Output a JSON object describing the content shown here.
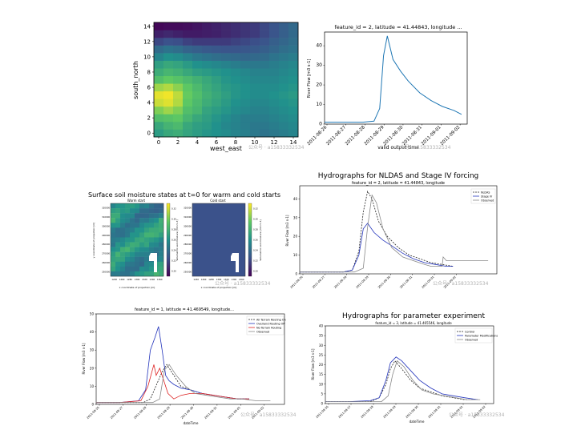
{
  "chart_data": [
    {
      "id": "heatmap",
      "type": "heatmap",
      "title": "",
      "xlabel": "west_east",
      "ylabel": "south_north",
      "x_ticks": [
        "0",
        "2",
        "4",
        "6",
        "8",
        "10",
        "12",
        "14"
      ],
      "y_ticks": [
        "0",
        "2",
        "4",
        "6",
        "8",
        "10",
        "12",
        "14"
      ],
      "colormap": "viridis",
      "values": [
        [
          0.55,
          0.6,
          0.62,
          0.58,
          0.55,
          0.52,
          0.5,
          0.48,
          0.45,
          0.43,
          0.4,
          0.38,
          0.4,
          0.42,
          0.45
        ],
        [
          0.6,
          0.65,
          0.68,
          0.6,
          0.56,
          0.54,
          0.5,
          0.46,
          0.44,
          0.42,
          0.4,
          0.4,
          0.42,
          0.44,
          0.46
        ],
        [
          0.7,
          0.72,
          0.74,
          0.66,
          0.6,
          0.56,
          0.52,
          0.48,
          0.45,
          0.42,
          0.42,
          0.42,
          0.44,
          0.46,
          0.48
        ],
        [
          0.8,
          0.85,
          0.8,
          0.7,
          0.66,
          0.58,
          0.55,
          0.52,
          0.48,
          0.46,
          0.44,
          0.44,
          0.46,
          0.48,
          0.5
        ],
        [
          0.92,
          0.95,
          0.88,
          0.74,
          0.68,
          0.62,
          0.58,
          0.54,
          0.5,
          0.48,
          0.46,
          0.46,
          0.48,
          0.5,
          0.52
        ],
        [
          0.96,
          0.98,
          0.9,
          0.76,
          0.7,
          0.64,
          0.6,
          0.56,
          0.52,
          0.5,
          0.48,
          0.48,
          0.5,
          0.52,
          0.54
        ],
        [
          0.85,
          0.88,
          0.82,
          0.74,
          0.68,
          0.62,
          0.58,
          0.54,
          0.52,
          0.5,
          0.48,
          0.48,
          0.48,
          0.5,
          0.52
        ],
        [
          0.7,
          0.75,
          0.72,
          0.68,
          0.64,
          0.6,
          0.56,
          0.52,
          0.5,
          0.48,
          0.46,
          0.46,
          0.46,
          0.48,
          0.5
        ],
        [
          0.62,
          0.66,
          0.64,
          0.6,
          0.56,
          0.54,
          0.52,
          0.5,
          0.48,
          0.46,
          0.44,
          0.44,
          0.44,
          0.46,
          0.48
        ],
        [
          0.56,
          0.6,
          0.58,
          0.54,
          0.5,
          0.48,
          0.46,
          0.44,
          0.42,
          0.4,
          0.4,
          0.4,
          0.42,
          0.44,
          0.46
        ],
        [
          0.45,
          0.5,
          0.48,
          0.44,
          0.4,
          0.38,
          0.36,
          0.35,
          0.34,
          0.33,
          0.34,
          0.35,
          0.38,
          0.4,
          0.42
        ],
        [
          0.35,
          0.38,
          0.36,
          0.32,
          0.3,
          0.28,
          0.27,
          0.26,
          0.26,
          0.27,
          0.28,
          0.3,
          0.33,
          0.36,
          0.38
        ],
        [
          0.22,
          0.25,
          0.24,
          0.2,
          0.18,
          0.18,
          0.18,
          0.18,
          0.2,
          0.22,
          0.24,
          0.26,
          0.3,
          0.33,
          0.36
        ],
        [
          0.1,
          0.12,
          0.1,
          0.08,
          0.08,
          0.09,
          0.1,
          0.12,
          0.14,
          0.16,
          0.18,
          0.22,
          0.26,
          0.3,
          0.34
        ],
        [
          0.02,
          0.03,
          0.03,
          0.04,
          0.06,
          0.08,
          0.1,
          0.12,
          0.14,
          0.16,
          0.18,
          0.22,
          0.26,
          0.3,
          0.34
        ]
      ]
    },
    {
      "id": "riverflow",
      "type": "line",
      "title": "feature_id = 2, latitude = 41.44843, longitude ...",
      "xlabel": "valid output time",
      "ylabel": "River Flow [m3 s-1]",
      "x_ticks": [
        "2011-08-26",
        "2011-08-27",
        "2011-08-28",
        "2011-08-29",
        "2011-08-30",
        "2011-08-31",
        "2011-09-01",
        "2011-09-02"
      ],
      "y_ticks": [
        "0",
        "10",
        "20",
        "30",
        "40"
      ],
      "xlim": [
        0,
        7.5
      ],
      "ylim": [
        0,
        47
      ],
      "series": [
        {
          "color": "#1f77b4",
          "x": [
            0,
            1,
            2,
            2.6,
            2.9,
            3.1,
            3.3,
            3.6,
            4,
            4.4,
            5,
            5.6,
            6.2,
            6.8,
            7.2
          ],
          "y": [
            1,
            1,
            1,
            1.5,
            8,
            35,
            45,
            33,
            27,
            22,
            16,
            12,
            9,
            7,
            5
          ]
        }
      ]
    },
    {
      "id": "soil",
      "type": "heatmap",
      "title": "Surface soil moisture states at t=0 for warm and cold starts",
      "panels": [
        {
          "subtitle": "Warm start",
          "ylabel": "y coordinate of projection [m]",
          "xlabel": "x coordinate of projection [m]",
          "colorbar_label": "Volumetric soil moisture [m3 m-3]"
        },
        {
          "subtitle": "Cold start",
          "ylabel": "",
          "xlabel": "x coordinate of projection [m]",
          "colorbar_label": "Volumetric soil moisture [m3 m-3]"
        }
      ],
      "y_ticks": [
        "250000",
        "260000",
        "270000",
        "280000",
        "290000",
        "300000",
        "310000",
        "320000"
      ],
      "x_ticks": [
        "1240",
        "1260",
        "1280",
        "1300",
        "1320",
        "1340",
        "1360"
      ],
      "colorbar_ticks": [
        "0.20",
        "0.22",
        "0.24",
        "0.26",
        "0.28",
        "0.30",
        "0.32"
      ]
    },
    {
      "id": "nldas",
      "type": "line",
      "title": "Hydrographs for NLDAS and Stage IV forcing",
      "subtitle": "feature_id = 2, latitude = 41.44843, longitude",
      "xlabel": "",
      "ylabel": "River Flow [m3 s-1]",
      "x_ticks": [
        "2011-08-26",
        "2011-08-27",
        "2011-08-28",
        "2011-08-29",
        "2011-08-30",
        "2011-08-31",
        "2011-09-01",
        "2011-09-02"
      ],
      "y_ticks": [
        "0",
        "10",
        "20",
        "30",
        "40"
      ],
      "legend": "top-right",
      "legend_entries": [
        "NLDAS",
        "Stage IV",
        "Observed"
      ],
      "xlim": [
        0,
        9
      ],
      "ylim": [
        0,
        47
      ],
      "series": [
        {
          "name": "NLDAS",
          "color": "#222222",
          "dash": true,
          "x": [
            0,
            1,
            2,
            2.4,
            2.7,
            2.9,
            3.1,
            3.3,
            3.6,
            4,
            4.5,
            5,
            5.5,
            6,
            6.5,
            7
          ],
          "y": [
            1,
            1,
            1,
            2,
            12,
            33,
            44,
            40,
            28,
            20,
            14,
            10,
            8,
            6,
            5,
            4
          ]
        },
        {
          "name": "Stage IV",
          "color": "#2233bb",
          "dash": false,
          "x": [
            0,
            1,
            2,
            2.4,
            2.7,
            2.9,
            3.1,
            3.4,
            3.8,
            4.2,
            4.7,
            5.2,
            5.7,
            6.2,
            6.7,
            7
          ],
          "y": [
            1,
            1,
            1,
            2,
            10,
            24,
            27,
            22,
            18,
            15,
            11,
            8,
            6,
            5,
            4,
            4
          ]
        },
        {
          "name": "Observed",
          "color": "#888888",
          "dash": false,
          "x": [
            0,
            1,
            2,
            2.5,
            2.9,
            3.1,
            3.3,
            3.5,
            3.8,
            4.2,
            4.7,
            5.2,
            5.7,
            6,
            6.5,
            6.55,
            6.7,
            7.5,
            8,
            8.6
          ],
          "y": [
            1,
            1,
            1,
            1,
            3,
            25,
            42,
            38,
            24,
            14,
            9,
            7,
            5,
            4,
            4,
            9,
            7,
            7,
            7,
            7
          ]
        }
      ]
    },
    {
      "id": "terrain",
      "type": "line",
      "title": "feature_id = 1, latitude = 41.469549, longitude...",
      "xlabel": "dateTime",
      "ylabel": "River Flow [m3 s-1]",
      "x_ticks": [
        "2011-08-26",
        "2011-08-27",
        "2011-08-28",
        "2011-08-29",
        "2011-08-30",
        "2011-08-31",
        "2011-09-01",
        "2011-09-02"
      ],
      "y_ticks": [
        "0",
        "10",
        "20",
        "30",
        "40",
        "50"
      ],
      "legend": "top-right",
      "legend_entries": [
        "All Terrain Routing On",
        "Overland Routing Off",
        "No Terrain Routing",
        "Observed"
      ],
      "xlim": [
        0,
        8
      ],
      "ylim": [
        0,
        50
      ],
      "series": [
        {
          "name": "All Terrain Routing On",
          "color": "#222222",
          "dash": true,
          "x": [
            0,
            1,
            2,
            2.3,
            2.6,
            2.8,
            3,
            3.3,
            3.6,
            4,
            4.5,
            5,
            5.5,
            6,
            6.5
          ],
          "y": [
            1,
            1,
            1,
            3,
            12,
            18,
            22,
            16,
            10,
            8,
            6,
            5,
            4,
            3,
            3
          ]
        },
        {
          "name": "Overland Routing Off",
          "color": "#2233bb",
          "dash": false,
          "x": [
            0,
            1,
            1.8,
            2.1,
            2.3,
            2.5,
            2.65,
            2.8,
            2.95,
            3.1,
            3.3,
            3.6,
            4,
            4.5,
            5,
            5.5,
            6,
            6.5
          ],
          "y": [
            1,
            1,
            2,
            8,
            30,
            37,
            43,
            30,
            16,
            13,
            11,
            9,
            8,
            6,
            5,
            4,
            3,
            3
          ]
        },
        {
          "name": "No Terrain Routing",
          "color": "#dd2222",
          "dash": false,
          "x": [
            0,
            1,
            1.9,
            2.2,
            2.45,
            2.55,
            2.7,
            2.9,
            3.05,
            3.3,
            3.6,
            4,
            4.5,
            5,
            5.5,
            6,
            6.5
          ],
          "y": [
            1,
            1,
            2,
            10,
            22,
            16,
            20,
            12,
            6,
            3,
            5,
            6,
            6,
            5,
            4,
            3,
            3
          ]
        },
        {
          "name": "Observed",
          "color": "#888888",
          "dash": false,
          "x": [
            0,
            1,
            2,
            2.4,
            2.7,
            2.9,
            3.1,
            3.4,
            3.8,
            4.2,
            4.7,
            5.2,
            5.7,
            6.2,
            6.8,
            7.4
          ],
          "y": [
            1,
            1,
            1,
            1,
            3,
            19,
            22,
            16,
            10,
            6,
            5,
            4,
            3,
            3,
            2,
            2
          ]
        }
      ]
    },
    {
      "id": "param",
      "type": "line",
      "title": "Hydrographs for parameter experiment",
      "subtitle": "feature_id = 3, latitude = 41.465546, longitude",
      "xlabel": "dateTime",
      "ylabel": "River Flow [m3 s-1]",
      "x_ticks": [
        "2011-08-26",
        "2011-08-27",
        "2011-08-28",
        "2011-08-29",
        "2011-08-30",
        "2011-08-31",
        "2011-09-01",
        "2011-09-02"
      ],
      "y_ticks": [
        "0",
        "5",
        "10",
        "15",
        "20",
        "25",
        "30",
        "35",
        "40"
      ],
      "legend": "top-right",
      "legend_entries": [
        "Control",
        "Parameter Modifications",
        "Observed"
      ],
      "xlim": [
        0,
        7.5
      ],
      "ylim": [
        0,
        40
      ],
      "series": [
        {
          "name": "Control",
          "color": "#222222",
          "dash": true,
          "x": [
            0,
            1,
            2,
            2.4,
            2.7,
            2.9,
            3.1,
            3.4,
            3.8,
            4.2,
            4.7,
            5.2,
            5.7,
            6.2,
            6.8
          ],
          "y": [
            1,
            1,
            1,
            3,
            10,
            18,
            22,
            18,
            12,
            8,
            6,
            4,
            3,
            2,
            2
          ]
        },
        {
          "name": "Parameter Modifications",
          "color": "#2233bb",
          "dash": false,
          "x": [
            0,
            1,
            2,
            2.4,
            2.7,
            2.9,
            3.15,
            3.4,
            3.8,
            4.2,
            4.7,
            5.2,
            5.7,
            6.2,
            6.8
          ],
          "y": [
            1,
            1,
            1.5,
            3,
            12,
            21,
            24,
            22,
            17,
            12,
            8,
            5,
            4,
            3,
            2
          ]
        },
        {
          "name": "Observed",
          "color": "#888888",
          "dash": false,
          "x": [
            0,
            1,
            2,
            2.5,
            2.8,
            3,
            3.2,
            3.5,
            3.9,
            4.3,
            4.8,
            5.3,
            5.8,
            6.3,
            6.9
          ],
          "y": [
            1,
            1,
            1,
            1,
            4,
            15,
            22,
            19,
            12,
            7,
            5,
            4,
            3,
            2,
            2
          ]
        }
      ]
    }
  ],
  "watermarks": [
    "公众号 · a15833332534",
    "公众号 · a15833332534",
    "公众号 · a15833332534",
    "公众号 · a15833332534",
    "公众号 · a15833332534",
    "公众号 · a15833332534"
  ]
}
